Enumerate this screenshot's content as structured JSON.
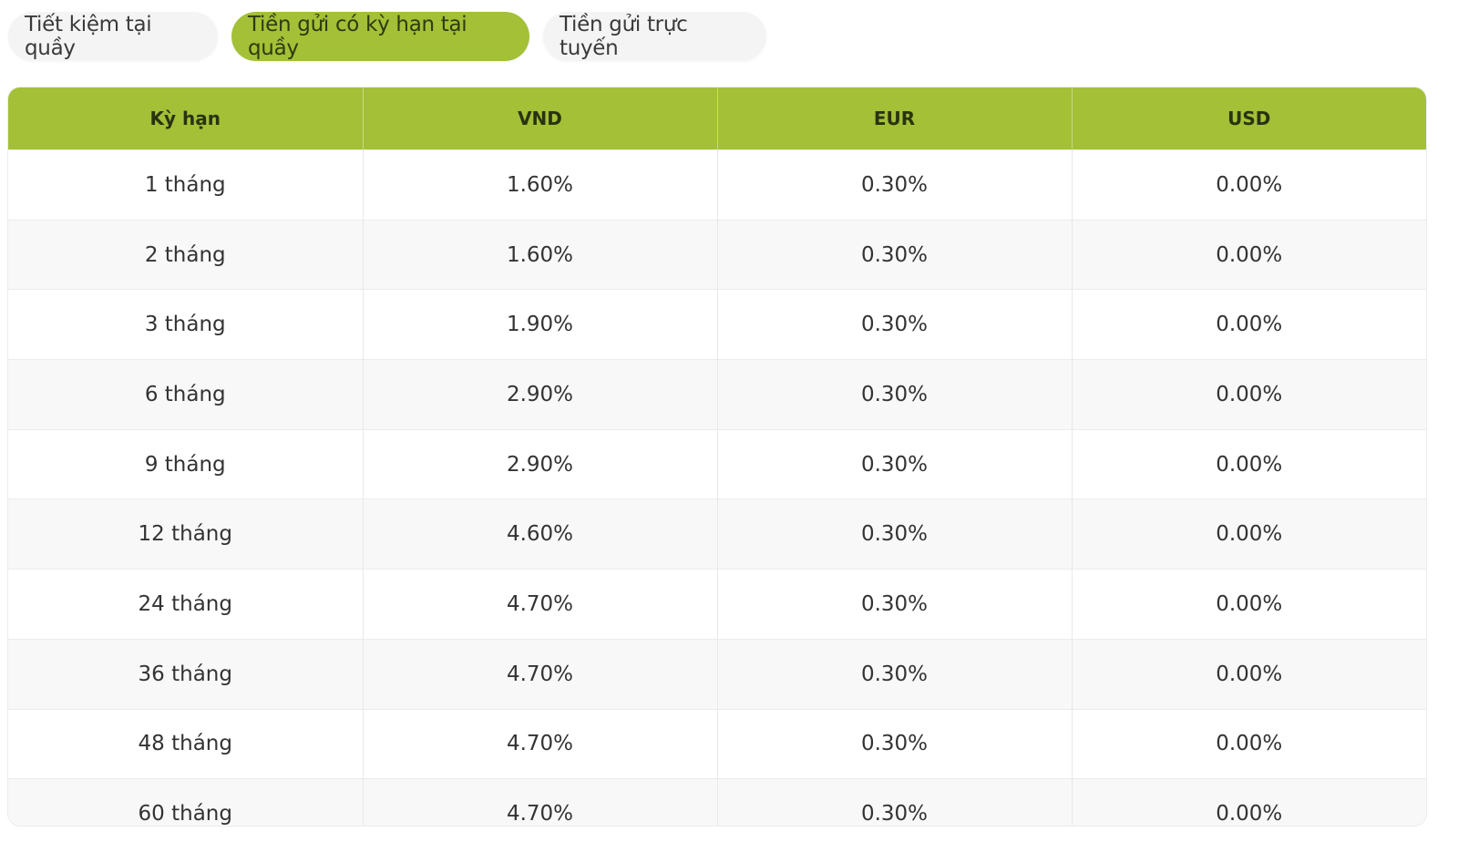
{
  "tabs": [
    {
      "label": "Tiết kiệm tại quầy",
      "active": false
    },
    {
      "label": "Tiền gửi có kỳ hạn tại quầy",
      "active": true
    },
    {
      "label": "Tiền gửi trực tuyến",
      "active": false
    }
  ],
  "colors": {
    "accent": "#a3c037"
  },
  "table": {
    "headers": [
      "Kỳ hạn",
      "VND",
      "EUR",
      "USD"
    ],
    "rows": [
      [
        "1 tháng",
        "1.60%",
        "0.30%",
        "0.00%"
      ],
      [
        "2 tháng",
        "1.60%",
        "0.30%",
        "0.00%"
      ],
      [
        "3 tháng",
        "1.90%",
        "0.30%",
        "0.00%"
      ],
      [
        "6 tháng",
        "2.90%",
        "0.30%",
        "0.00%"
      ],
      [
        "9 tháng",
        "2.90%",
        "0.30%",
        "0.00%"
      ],
      [
        "12 tháng",
        "4.60%",
        "0.30%",
        "0.00%"
      ],
      [
        "24 tháng",
        "4.70%",
        "0.30%",
        "0.00%"
      ],
      [
        "36 tháng",
        "4.70%",
        "0.30%",
        "0.00%"
      ],
      [
        "48 tháng",
        "4.70%",
        "0.30%",
        "0.00%"
      ],
      [
        "60 tháng",
        "4.70%",
        "0.30%",
        "0.00%"
      ]
    ]
  }
}
